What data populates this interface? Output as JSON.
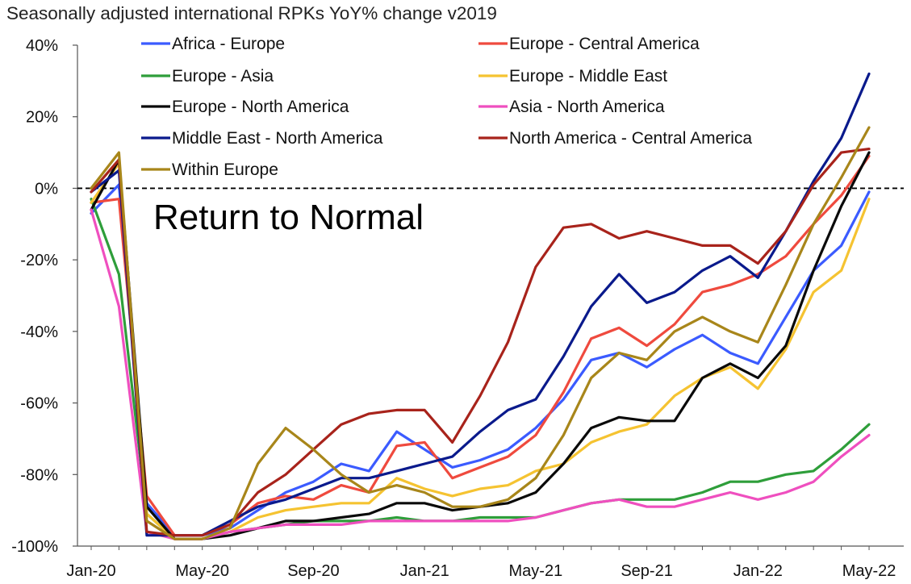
{
  "chart_data": {
    "type": "line",
    "title": "Seasonally adjusted international RPKs YoY% change v2019",
    "xlabel": "",
    "ylabel": "",
    "ylim": [
      -100,
      40
    ],
    "y_ticks": [
      40,
      20,
      0,
      -20,
      -40,
      -60,
      -80,
      -100
    ],
    "y_tick_labels": [
      "40%",
      "20%",
      "0%",
      "-20%",
      "-40%",
      "-60%",
      "-80%",
      "-100%"
    ],
    "x_tick_labels": [
      "Jan-20",
      "May-20",
      "Sep-20",
      "Jan-21",
      "May-21",
      "Sep-21",
      "Jan-22",
      "May-22"
    ],
    "categories": [
      "Jan-20",
      "Feb-20",
      "Mar-20",
      "Apr-20",
      "May-20",
      "Jun-20",
      "Jul-20",
      "Aug-20",
      "Sep-20",
      "Oct-20",
      "Nov-20",
      "Dec-20",
      "Jan-21",
      "Feb-21",
      "Mar-21",
      "Apr-21",
      "May-21",
      "Jun-21",
      "Jul-21",
      "Aug-21",
      "Sep-21",
      "Oct-21",
      "Nov-21",
      "Dec-21",
      "Jan-22",
      "Feb-22",
      "Mar-22",
      "Apr-22",
      "May-22"
    ],
    "reference_line": {
      "y": 0,
      "style": "dashed"
    },
    "annotations": [
      {
        "text": "Return to Normal"
      }
    ],
    "legend_position": "top",
    "series": [
      {
        "name": "Africa - Europe",
        "color": "#3b5bff",
        "values": [
          -7,
          1,
          -88,
          -97,
          -97,
          -95,
          -90,
          -85,
          -82,
          -77,
          -79,
          -68,
          -73,
          -78,
          -76,
          -73,
          -67,
          -59,
          -48,
          -46,
          -50,
          -45,
          -41,
          -46,
          -49,
          -36,
          -23,
          -16,
          -1
        ]
      },
      {
        "name": "Europe - Central America",
        "color": "#ef4a3e",
        "values": [
          -4,
          -3,
          -86,
          -97,
          -97,
          -94,
          -88,
          -86,
          -87,
          -83,
          -85,
          -72,
          -71,
          -81,
          -78,
          -75,
          -69,
          -57,
          -42,
          -39,
          -44,
          -38,
          -29,
          -27,
          -24,
          -19,
          -10,
          -2,
          9
        ]
      },
      {
        "name": "Europe - Asia",
        "color": "#2e9e3a",
        "values": [
          -3,
          -24,
          -91,
          -98,
          -98,
          -96,
          -95,
          -94,
          -93,
          -93,
          -93,
          -92,
          -93,
          -93,
          -92,
          -92,
          -92,
          -90,
          -88,
          -87,
          -87,
          -87,
          -85,
          -82,
          -82,
          -80,
          -79,
          -73,
          -66
        ]
      },
      {
        "name": "Europe - Middle East",
        "color": "#f5c331",
        "values": [
          -4,
          7,
          -91,
          -98,
          -98,
          -96,
          -92,
          -90,
          -89,
          -88,
          -88,
          -81,
          -84,
          -86,
          -84,
          -83,
          -79,
          -77,
          -71,
          -68,
          -66,
          -58,
          -53,
          -50,
          -56,
          -45,
          -29,
          -23,
          -3
        ]
      },
      {
        "name": "Europe - North America",
        "color": "#0a0a0a",
        "values": [
          -6,
          8,
          -89,
          -98,
          -98,
          -97,
          -95,
          -93,
          -93,
          -92,
          -91,
          -88,
          -88,
          -90,
          -89,
          -88,
          -85,
          -77,
          -67,
          -64,
          -65,
          -65,
          -53,
          -49,
          -53,
          -44,
          -23,
          -5,
          10
        ]
      },
      {
        "name": "Asia - North America",
        "color": "#ef4fbf",
        "values": [
          -6,
          -33,
          -96,
          -98,
          -98,
          -96,
          -95,
          -94,
          -94,
          -94,
          -93,
          -93,
          -93,
          -93,
          -93,
          -93,
          -92,
          -90,
          -88,
          -87,
          -89,
          -89,
          -87,
          -85,
          -87,
          -85,
          -82,
          -75,
          -69
        ]
      },
      {
        "name": "Middle East - North America",
        "color": "#0a1a8c",
        "values": [
          -1,
          5,
          -97,
          -97,
          -97,
          -93,
          -89,
          -87,
          -84,
          -81,
          -81,
          -79,
          -77,
          -75,
          -68,
          -62,
          -59,
          -47,
          -33,
          -24,
          -32,
          -29,
          -23,
          -19,
          -25,
          -12,
          2,
          14,
          32
        ]
      },
      {
        "name": "North America - Central America",
        "color": "#a8231b",
        "values": [
          -1,
          8,
          -96,
          -97,
          -97,
          -94,
          -85,
          -80,
          -73,
          -66,
          -63,
          -62,
          -62,
          -71,
          -58,
          -43,
          -22,
          -11,
          -10,
          -14,
          -12,
          -14,
          -16,
          -16,
          -21,
          -12,
          1,
          10,
          11
        ]
      },
      {
        "name": "Within Europe",
        "color": "#a8861a",
        "values": [
          0,
          10,
          -93,
          -98,
          -98,
          -95,
          -77,
          -67,
          -73,
          -80,
          -85,
          -83,
          -85,
          -89,
          -89,
          -87,
          -81,
          -69,
          -53,
          -46,
          -48,
          -40,
          -36,
          -40,
          -43,
          -27,
          -10,
          3,
          17
        ]
      }
    ]
  }
}
